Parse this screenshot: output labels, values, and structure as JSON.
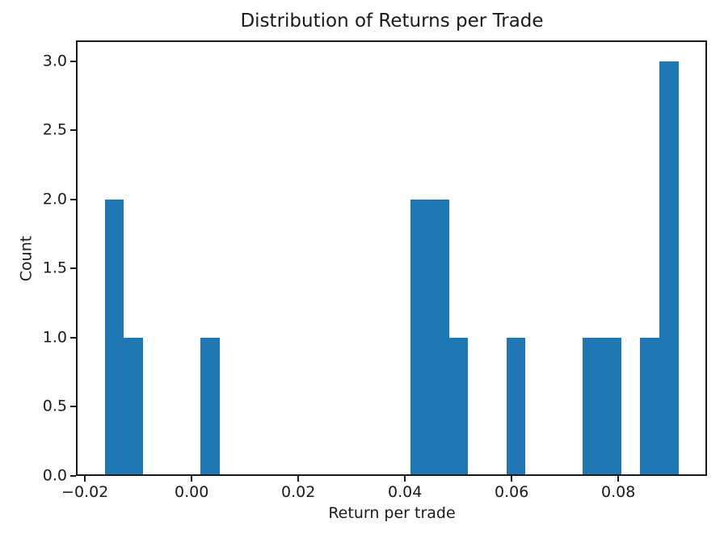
{
  "chart_data": {
    "type": "bar",
    "subtype": "histogram",
    "title": "Distribution of Returns per Trade",
    "xlabel": "Return per trade",
    "ylabel": "Count",
    "bar_color": "#1f77b4",
    "axis_color": "#1a1a1a",
    "background_color": "#ffffff",
    "grid": false,
    "xlim": [
      -0.02169,
      0.09664
    ],
    "ylim": [
      0,
      3.15
    ],
    "x_ticks": [
      {
        "value": -0.02,
        "label": "−0.02"
      },
      {
        "value": 0.0,
        "label": "0.00"
      },
      {
        "value": 0.02,
        "label": "0.02"
      },
      {
        "value": 0.04,
        "label": "0.04"
      },
      {
        "value": 0.06,
        "label": "0.06"
      },
      {
        "value": 0.08,
        "label": "0.08"
      }
    ],
    "y_ticks": [
      {
        "value": 0.0,
        "label": "0.0"
      },
      {
        "value": 0.5,
        "label": "0.5"
      },
      {
        "value": 1.0,
        "label": "1.0"
      },
      {
        "value": 1.5,
        "label": "1.5"
      },
      {
        "value": 2.0,
        "label": "2.0"
      },
      {
        "value": 2.5,
        "label": "2.5"
      },
      {
        "value": 3.0,
        "label": "3.0"
      }
    ],
    "bins": {
      "edges": [
        -0.01631,
        -0.01272,
        -0.00913,
        -0.00555,
        -0.00196,
        0.00162,
        0.00521,
        0.0088,
        0.01238,
        0.01597,
        0.01956,
        0.02314,
        0.02673,
        0.03031,
        0.0339,
        0.03748,
        0.04107,
        0.04466,
        0.04824,
        0.05183,
        0.05541,
        0.059,
        0.06259,
        0.06617,
        0.06976,
        0.07334,
        0.07693,
        0.08051,
        0.0841,
        0.08769,
        0.09127
      ],
      "counts": [
        2,
        1,
        0,
        0,
        0,
        1,
        0,
        0,
        0,
        0,
        0,
        0,
        0,
        0,
        0,
        0,
        2,
        2,
        1,
        0,
        0,
        1,
        0,
        0,
        0,
        1,
        1,
        0,
        1,
        3
      ]
    },
    "total_observations": 16
  }
}
